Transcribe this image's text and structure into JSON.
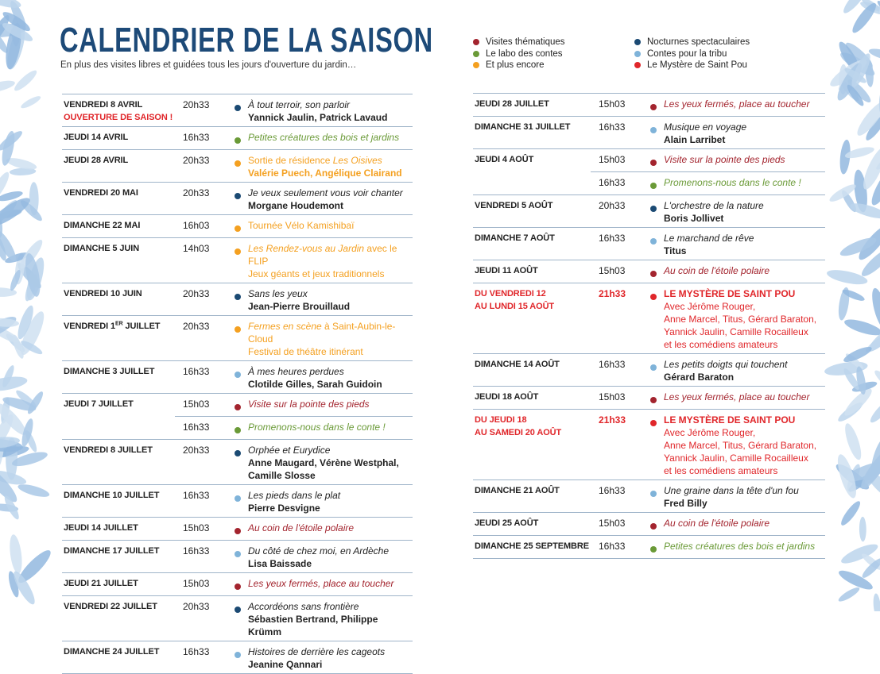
{
  "header": {
    "title": "CALENDRIER DE LA SAISON",
    "subtitle": "En plus des visites libres et guidées tous les jours d'ouverture du jardin…"
  },
  "categories": {
    "vt": {
      "label": "Visites thématiques",
      "color": "#a3242e"
    },
    "labo": {
      "label": "Le labo des contes",
      "color": "#6a9a37"
    },
    "plus": {
      "label": "Et plus encore",
      "color": "#f4a020"
    },
    "noct": {
      "label": "Nocturnes spectaculaires",
      "color": "#1b4a73"
    },
    "tribu": {
      "label": "Contes pour la tribu",
      "color": "#7fb3d9"
    },
    "mystere": {
      "label": "Le Mystère de Saint Pou",
      "color": "#e0262a"
    }
  },
  "legend_order": [
    "vt",
    "noct",
    "labo",
    "tribu",
    "plus",
    "mystere"
  ],
  "left": {
    "rows": [
      {
        "date": [
          {
            "t": "VENDREDI 8 AVRIL"
          },
          {
            "t": "OUVERTURE DE SAISON !",
            "red": true
          }
        ],
        "entries": [
          {
            "time": "20h33",
            "cat": "noct",
            "title": [
              {
                "t": "À tout terroir, son parloir",
                "it": true
              }
            ],
            "names": [
              "Yannick Jaulin, Patrick Lavaud"
            ]
          }
        ]
      },
      {
        "date": [
          {
            "t": "JEUDI 14 AVRIL"
          }
        ],
        "entries": [
          {
            "time": "16h33",
            "cat": "labo",
            "title": [
              {
                "t": "Petites créatures des bois et jardins",
                "it": true
              }
            ]
          }
        ]
      },
      {
        "date": [
          {
            "t": "JEUDI 28 AVRIL"
          }
        ],
        "entries": [
          {
            "time": "20h33",
            "cat": "plus",
            "title": [
              {
                "t": "Sortie de résidence ",
                "it": false
              },
              {
                "t": "Les Oisives",
                "it": true
              }
            ],
            "names": [
              "Valérie Puech, Angélique Clairand"
            ]
          }
        ]
      },
      {
        "date": [
          {
            "t": "VENDREDI 20 MAI"
          }
        ],
        "entries": [
          {
            "time": "20h33",
            "cat": "noct",
            "title": [
              {
                "t": "Je veux seulement vous voir chanter",
                "it": true
              }
            ],
            "names": [
              "Morgane Houdemont"
            ]
          }
        ]
      },
      {
        "date": [
          {
            "t": "DIMANCHE 22 MAI"
          }
        ],
        "entries": [
          {
            "time": "16h03",
            "cat": "plus",
            "title": [
              {
                "t": "Tournée Vélo Kamishibaï",
                "it": false
              }
            ]
          }
        ]
      },
      {
        "date": [
          {
            "t": "DIMANCHE 5 JUIN"
          }
        ],
        "entries": [
          {
            "time": "14h03",
            "cat": "plus",
            "title": [
              {
                "t": "Les Rendez-vous au Jardin",
                "it": true
              },
              {
                "t": " avec le FLIP",
                "it": false
              }
            ],
            "sub": [
              "Jeux géants et jeux traditionnels"
            ]
          }
        ]
      },
      {
        "date": [
          {
            "t": "VENDREDI 10 JUIN"
          }
        ],
        "entries": [
          {
            "time": "20h33",
            "cat": "noct",
            "title": [
              {
                "t": "Sans les yeux",
                "it": true
              }
            ],
            "names": [
              "Jean-Pierre Brouillaud"
            ]
          }
        ]
      },
      {
        "date": [
          {
            "t": "VENDREDI 1",
            "sup": "ER",
            "after": " JUILLET"
          }
        ],
        "entries": [
          {
            "time": "20h33",
            "cat": "plus",
            "title": [
              {
                "t": "Fermes en scène",
                "it": true
              },
              {
                "t": " à Saint-Aubin-le-Cloud",
                "it": false
              }
            ],
            "sub": [
              "Festival de théâtre itinérant"
            ]
          }
        ]
      },
      {
        "date": [
          {
            "t": "DIMANCHE 3 JUILLET"
          }
        ],
        "entries": [
          {
            "time": "16h33",
            "cat": "tribu",
            "title": [
              {
                "t": "À mes heures perdues",
                "it": true
              }
            ],
            "names": [
              "Clotilde Gilles, Sarah Guidoin"
            ]
          }
        ]
      },
      {
        "date": [
          {
            "t": "JEUDI 7 JUILLET"
          }
        ],
        "entries": [
          {
            "time": "15h03",
            "cat": "vt",
            "title": [
              {
                "t": "Visite sur la pointe des pieds",
                "it": true
              }
            ]
          },
          {
            "time": "16h33",
            "cat": "labo",
            "title": [
              {
                "t": "Promenons-nous dans le conte !",
                "it": true
              }
            ]
          }
        ]
      },
      {
        "date": [
          {
            "t": "VENDREDI 8 JUILLET"
          }
        ],
        "entries": [
          {
            "time": "20h33",
            "cat": "noct",
            "title": [
              {
                "t": "Orphée et Eurydice",
                "it": true
              }
            ],
            "names": [
              "Anne Maugard, Vérène Westphal,",
              "Camille Slosse"
            ]
          }
        ]
      },
      {
        "date": [
          {
            "t": "DIMANCHE 10 JUILLET"
          }
        ],
        "entries": [
          {
            "time": "16h33",
            "cat": "tribu",
            "title": [
              {
                "t": "Les pieds dans le plat",
                "it": true
              }
            ],
            "names": [
              "Pierre Desvigne"
            ]
          }
        ]
      },
      {
        "date": [
          {
            "t": "JEUDI 14 JUILLET"
          }
        ],
        "entries": [
          {
            "time": "15h03",
            "cat": "vt",
            "title": [
              {
                "t": "Au coin de l'étoile polaire",
                "it": true
              }
            ]
          }
        ]
      },
      {
        "date": [
          {
            "t": "DIMANCHE 17 JUILLET"
          }
        ],
        "entries": [
          {
            "time": "16h33",
            "cat": "tribu",
            "title": [
              {
                "t": "Du côté de chez moi, en Ardèche",
                "it": true
              }
            ],
            "names": [
              "Lisa Baissade"
            ]
          }
        ]
      },
      {
        "date": [
          {
            "t": "JEUDI 21 JUILLET"
          }
        ],
        "entries": [
          {
            "time": "15h03",
            "cat": "vt",
            "title": [
              {
                "t": "Les yeux fermés, place au toucher",
                "it": true
              }
            ]
          }
        ]
      },
      {
        "date": [
          {
            "t": "VENDREDI 22 JUILLET"
          }
        ],
        "entries": [
          {
            "time": "20h33",
            "cat": "noct",
            "title": [
              {
                "t": "Accordéons sans frontière",
                "it": true
              }
            ],
            "names": [
              "Sébastien Bertrand, Philippe Krümm"
            ]
          }
        ]
      },
      {
        "date": [
          {
            "t": "DIMANCHE 24 JUILLET"
          }
        ],
        "entries": [
          {
            "time": "16h33",
            "cat": "tribu",
            "title": [
              {
                "t": "Histoires de derrière les cageots",
                "it": true
              }
            ],
            "names": [
              "Jeanine Qannari"
            ]
          }
        ]
      }
    ]
  },
  "right": {
    "rows": [
      {
        "date": [
          {
            "t": "JEUDI 28 JUILLET"
          }
        ],
        "entries": [
          {
            "time": "15h03",
            "cat": "vt",
            "title": [
              {
                "t": "Les yeux fermés, place au toucher",
                "it": true
              }
            ]
          }
        ]
      },
      {
        "date": [
          {
            "t": "DIMANCHE 31 JUILLET"
          }
        ],
        "entries": [
          {
            "time": "16h33",
            "cat": "tribu",
            "title": [
              {
                "t": "Musique en voyage",
                "it": true
              }
            ],
            "names": [
              "Alain Larribet"
            ]
          }
        ]
      },
      {
        "date": [
          {
            "t": "JEUDI 4 AOÛT"
          }
        ],
        "entries": [
          {
            "time": "15h03",
            "cat": "vt",
            "title": [
              {
                "t": "Visite sur la pointe des pieds",
                "it": true
              }
            ]
          },
          {
            "time": "16h33",
            "cat": "labo",
            "title": [
              {
                "t": "Promenons-nous dans le conte !",
                "it": true
              }
            ]
          }
        ]
      },
      {
        "date": [
          {
            "t": "VENDREDI 5 AOÛT"
          }
        ],
        "entries": [
          {
            "time": "20h33",
            "cat": "noct",
            "title": [
              {
                "t": "L'orchestre de la nature",
                "it": true
              }
            ],
            "names": [
              "Boris Jollivet"
            ]
          }
        ]
      },
      {
        "date": [
          {
            "t": "DIMANCHE 7 AOÛT"
          }
        ],
        "entries": [
          {
            "time": "16h33",
            "cat": "tribu",
            "title": [
              {
                "t": "Le marchand de rêve",
                "it": true
              }
            ],
            "names": [
              "Titus"
            ]
          }
        ]
      },
      {
        "date": [
          {
            "t": "JEUDI 11 AOÛT"
          }
        ],
        "entries": [
          {
            "time": "15h03",
            "cat": "vt",
            "title": [
              {
                "t": "Au coin de l'étoile polaire",
                "it": true
              }
            ]
          }
        ]
      },
      {
        "date": [
          {
            "t": "DU VENDREDI 12",
            "red": true
          },
          {
            "t": "AU LUNDI 15 AOÛT",
            "red": true
          }
        ],
        "entries": [
          {
            "time": "21h33",
            "cat": "mystere",
            "title": [
              {
                "t": "LE MYSTÈRE DE SAINT POU",
                "it": false
              }
            ],
            "sub": [
              "Avec Jérôme Rouger,",
              "Anne Marcel, Titus, Gérard Baraton,",
              "Yannick Jaulin, Camille Rocailleux",
              "et les comédiens amateurs"
            ]
          }
        ]
      },
      {
        "date": [
          {
            "t": "DIMANCHE 14 AOÛT"
          }
        ],
        "entries": [
          {
            "time": "16h33",
            "cat": "tribu",
            "title": [
              {
                "t": "Les petits doigts qui touchent",
                "it": true
              }
            ],
            "names": [
              "Gérard Baraton"
            ]
          }
        ]
      },
      {
        "date": [
          {
            "t": "JEUDI 18 AOÛT"
          }
        ],
        "entries": [
          {
            "time": "15h03",
            "cat": "vt",
            "title": [
              {
                "t": "Les yeux fermés, place au toucher",
                "it": true
              }
            ]
          }
        ]
      },
      {
        "date": [
          {
            "t": "DU JEUDI 18",
            "red": true
          },
          {
            "t": "AU SAMEDI 20 AOÛT",
            "red": true
          }
        ],
        "entries": [
          {
            "time": "21h33",
            "cat": "mystere",
            "title": [
              {
                "t": "LE MYSTÈRE DE SAINT POU",
                "it": false
              }
            ],
            "sub": [
              "Avec Jérôme Rouger,",
              "Anne Marcel, Titus, Gérard Baraton,",
              "Yannick Jaulin, Camille Rocailleux",
              "et les comédiens amateurs"
            ]
          }
        ]
      },
      {
        "date": [
          {
            "t": "DIMANCHE 21 AOÛT"
          }
        ],
        "entries": [
          {
            "time": "16h33",
            "cat": "tribu",
            "title": [
              {
                "t": "Une graine dans la tête d'un fou",
                "it": true
              }
            ],
            "names": [
              "Fred Billy"
            ]
          }
        ]
      },
      {
        "date": [
          {
            "t": "JEUDI 25 AOÛT"
          }
        ],
        "entries": [
          {
            "time": "15h03",
            "cat": "vt",
            "title": [
              {
                "t": "Au coin de l'étoile polaire",
                "it": true
              }
            ]
          }
        ]
      },
      {
        "date": [
          {
            "t": "DIMANCHE 25 SEPTEMBRE"
          }
        ],
        "entries": [
          {
            "time": "16h33",
            "cat": "labo",
            "title": [
              {
                "t": "Petites créatures des bois et jardins",
                "it": true
              }
            ]
          }
        ]
      }
    ]
  }
}
